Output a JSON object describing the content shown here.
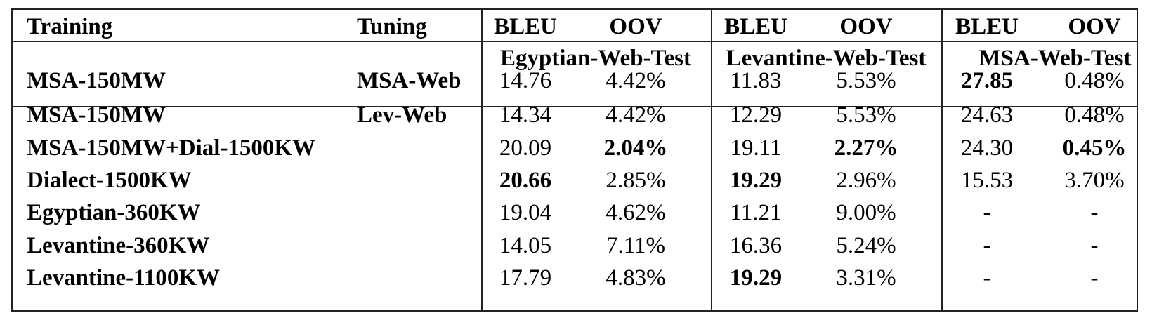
{
  "table": {
    "header": {
      "training": "Training",
      "tuning": "Tuning",
      "groups": [
        {
          "bleu": "BLEU",
          "oov": "OOV",
          "test_set": "Egyptian-Web-Test"
        },
        {
          "bleu": "BLEU",
          "oov": "OOV",
          "test_set": "Levantine-Web-Test"
        },
        {
          "bleu": "BLEU",
          "oov": "OOV",
          "test_set": "MSA-Web-Test"
        }
      ]
    },
    "rows": [
      {
        "training": "MSA-150MW",
        "tuning": "MSA-Web",
        "values": [
          "14.76",
          "4.42%",
          "11.83",
          "5.53%",
          "27.85",
          "0.48%"
        ],
        "bold": [
          false,
          false,
          false,
          false,
          true,
          false
        ]
      },
      {
        "training": "MSA-150MW",
        "tuning": "Lev-Web",
        "values": [
          "14.34",
          "4.42%",
          "12.29",
          "5.53%",
          "24.63",
          "0.48%"
        ],
        "bold": [
          false,
          false,
          false,
          false,
          false,
          false
        ]
      },
      {
        "training": "MSA-150MW+Dial-1500KW",
        "tuning": "",
        "values": [
          "20.09",
          "2.04%",
          "19.11",
          "2.27%",
          "24.30",
          "0.45%"
        ],
        "bold": [
          false,
          true,
          false,
          true,
          false,
          true
        ]
      },
      {
        "training": "Dialect-1500KW",
        "tuning": "",
        "values": [
          "20.66",
          "2.85%",
          "19.29",
          "2.96%",
          "15.53",
          "3.70%"
        ],
        "bold": [
          true,
          false,
          true,
          false,
          false,
          false
        ]
      },
      {
        "training": "Egyptian-360KW",
        "tuning": "",
        "values": [
          "19.04",
          "4.62%",
          "11.21",
          "9.00%",
          "-",
          "-"
        ],
        "bold": [
          false,
          false,
          false,
          false,
          false,
          false
        ]
      },
      {
        "training": "Levantine-360KW",
        "tuning": "",
        "values": [
          "14.05",
          "7.11%",
          "16.36",
          "5.24%",
          "-",
          "-"
        ],
        "bold": [
          false,
          false,
          false,
          false,
          false,
          false
        ]
      },
      {
        "training": "Levantine-1100KW",
        "tuning": "",
        "values": [
          "17.79",
          "4.83%",
          "19.29",
          "3.31%",
          "-",
          "-"
        ],
        "bold": [
          false,
          false,
          true,
          false,
          false,
          false
        ]
      }
    ]
  }
}
